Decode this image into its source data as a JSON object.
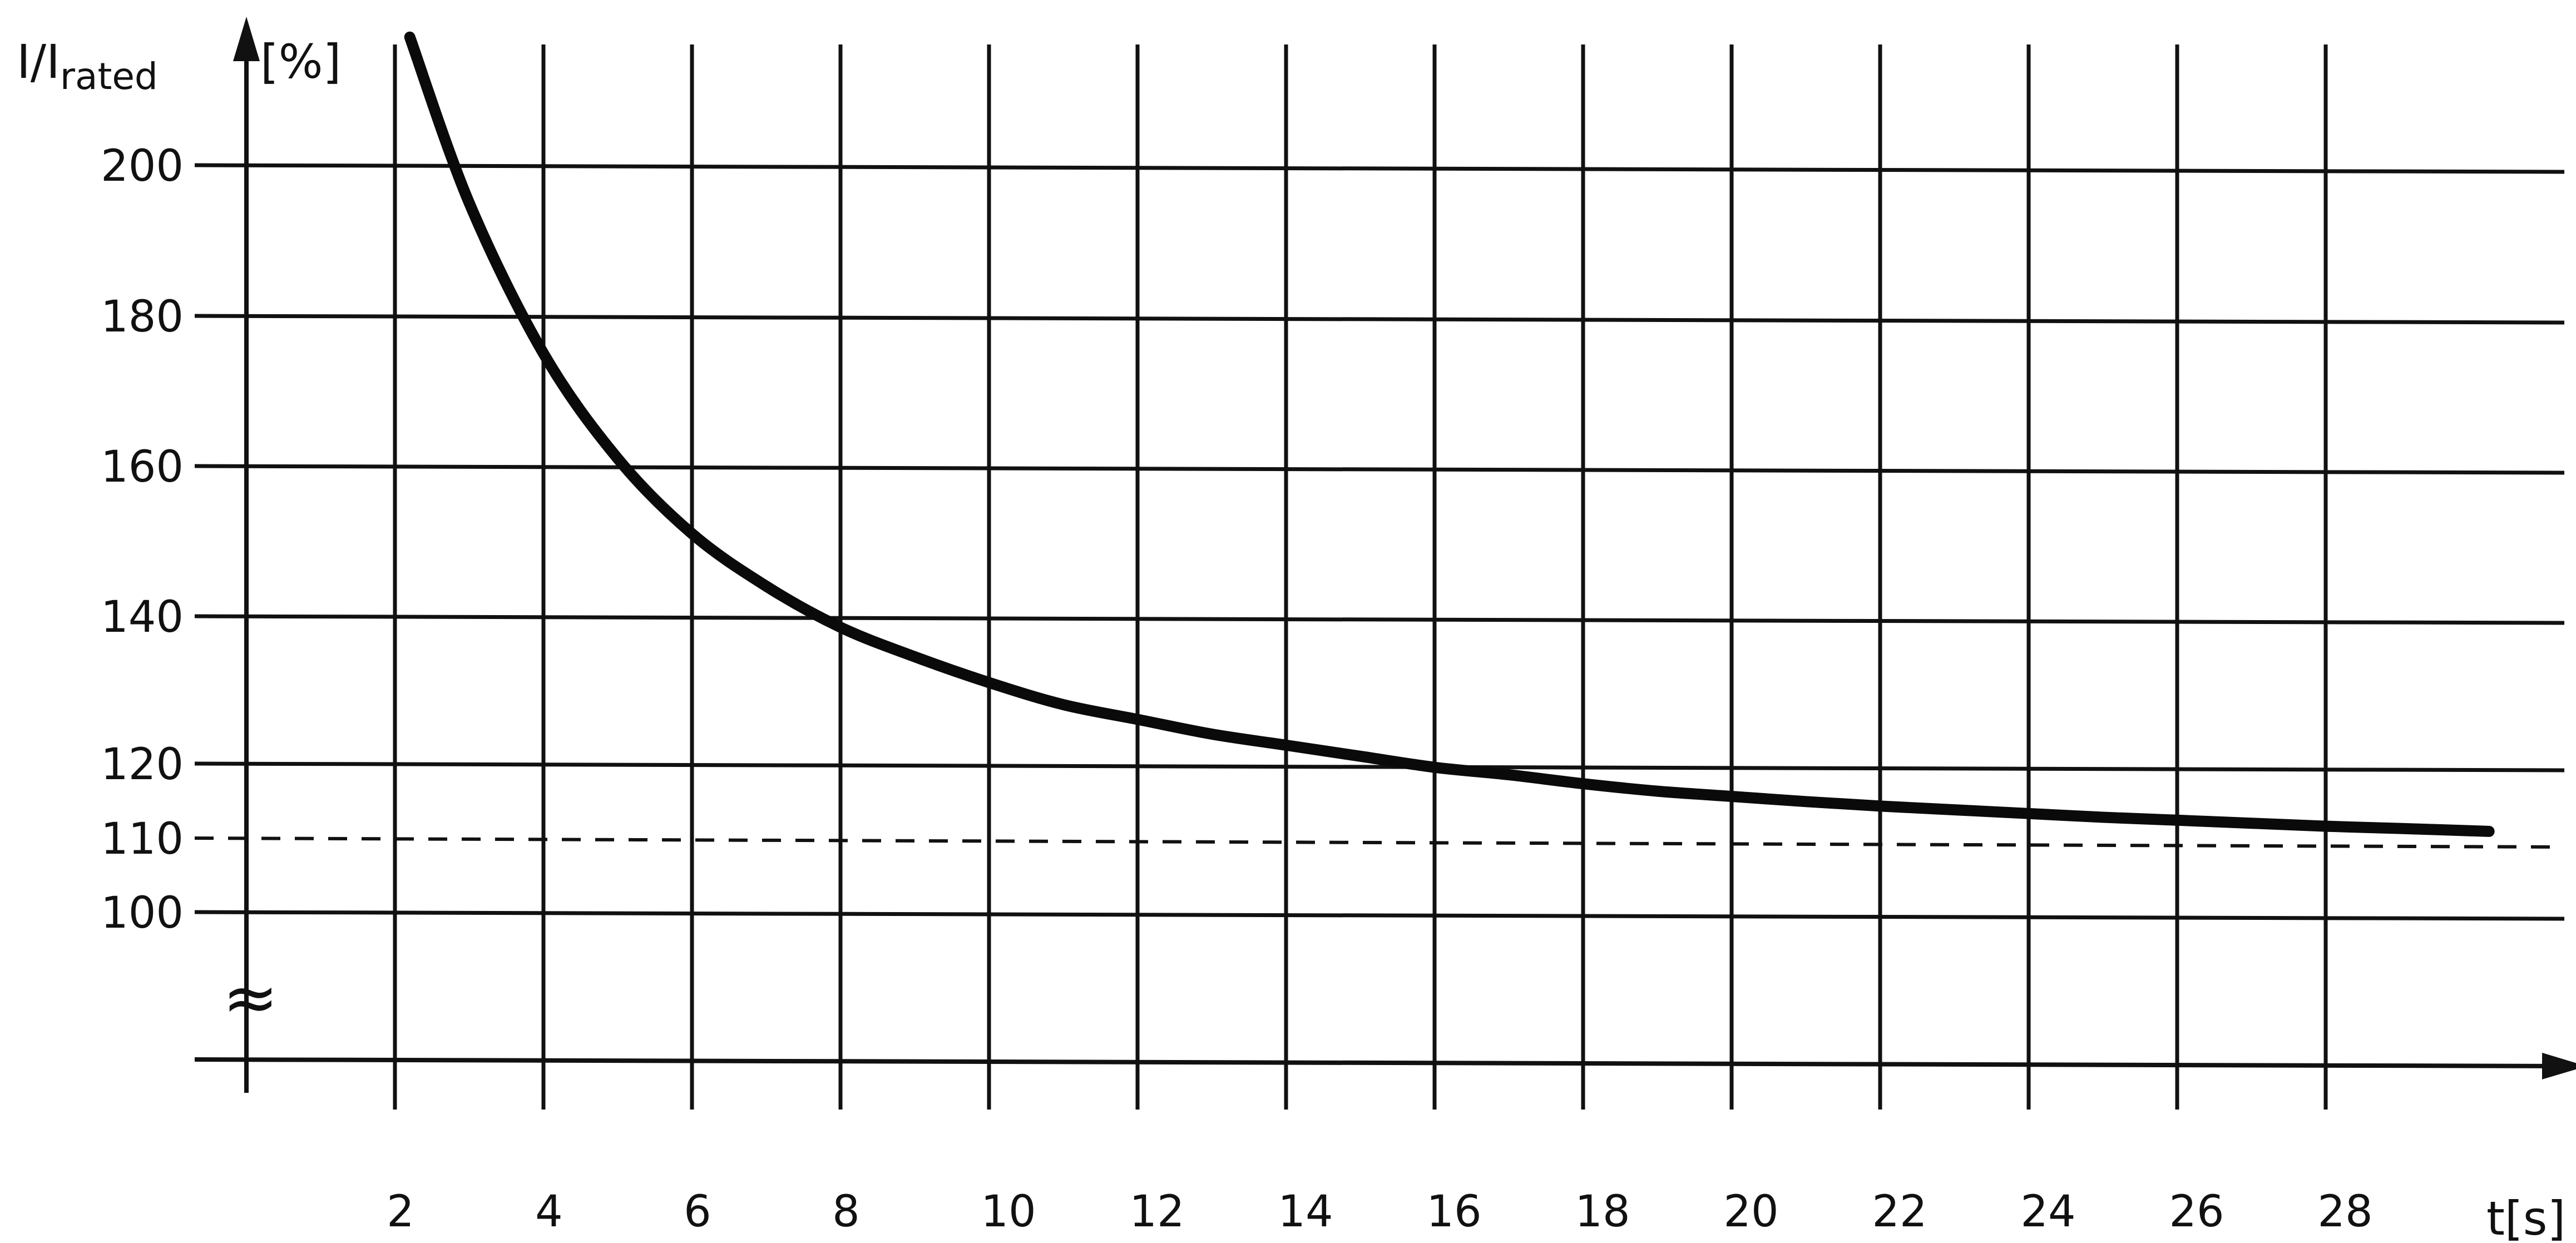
{
  "chart_data": {
    "type": "line",
    "title": "",
    "ylabel_main": "I/I",
    "ylabel_sub": "rated",
    "ylabel_unit": "[%]",
    "xlabel": "t[s]",
    "xlim": [
      0,
      31
    ],
    "ylim": [
      80,
      217
    ],
    "y_axis_break": true,
    "y_break_symbol": "≈",
    "grid": true,
    "x_ticks": [
      2,
      4,
      6,
      8,
      10,
      12,
      14,
      16,
      18,
      20,
      22,
      24,
      26,
      28
    ],
    "y_ticks": [
      100,
      110,
      120,
      140,
      160,
      180,
      200
    ],
    "reference_line": {
      "y": 110,
      "style": "dashed"
    },
    "series": [
      {
        "x": [
          2.2,
          3,
          4,
          5,
          6,
          7,
          8,
          9,
          10,
          11,
          12,
          13,
          14,
          15,
          16,
          17,
          18,
          19,
          20,
          21,
          22,
          23,
          24,
          25,
          26,
          27,
          28,
          29,
          30.2
        ],
        "values": [
          217,
          195,
          175,
          161,
          151,
          144,
          138.5,
          134.5,
          131,
          128,
          126,
          124,
          122.5,
          121,
          119.5,
          118.5,
          117.3,
          116.3,
          115.6,
          114.9,
          114.3,
          113.8,
          113.3,
          112.8,
          112.4,
          112,
          111.6,
          111.3,
          110.9
        ]
      }
    ]
  }
}
